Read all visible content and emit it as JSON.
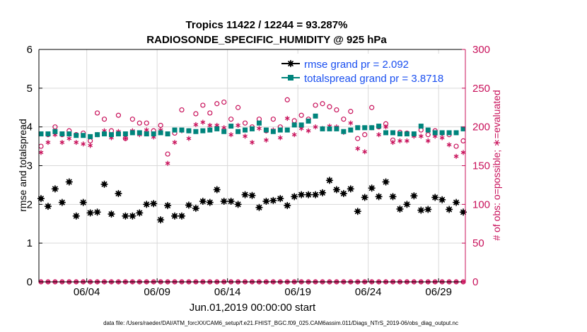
{
  "chart_data": {
    "type": "scatter",
    "title": "Tropics 11422 / 12244 = 93.287%",
    "subtitle": "RADIOSONDE_SPECIFIC_HUMIDITY @ 925 hPa",
    "ylabel_left": "rmse and totalspread",
    "ylabel_right": "# of obs: o=possible; ∗=evaluated",
    "xlabel": "Jun.01,2019 00:00:00 start",
    "footnote": "data file: /Users/raeder/DAI/ATM_forcXX/CAM6_setup/f.e21.FHIST_BGC.f09_025.CAM6assim.011/Diags_NTrS_2019-06/obs_diag_output.nc",
    "ylim_left": [
      0,
      6
    ],
    "ylim_right": [
      0,
      300
    ],
    "xlim": [
      0.6,
      30.9
    ],
    "yticks_left": [
      "0",
      "1",
      "2",
      "3",
      "4",
      "5",
      "6"
    ],
    "yticks_right": [
      "0",
      "50",
      "100",
      "150",
      "200",
      "250",
      "300"
    ],
    "xtick_positions": [
      4,
      9,
      14,
      19,
      24,
      29
    ],
    "xtick_labels": [
      "06/04",
      "06/09",
      "06/14",
      "06/19",
      "06/24",
      "06/29"
    ],
    "legend": [
      {
        "label": "rmse grand pr = 2.092",
        "color": "#000000",
        "marker": "star"
      },
      {
        "label": "totalspread grand pr = 3.8718",
        "color": "#00847c",
        "marker": "square"
      }
    ],
    "x": [
      0.75,
      1.25,
      1.75,
      2.25,
      2.75,
      3.25,
      3.75,
      4.25,
      4.75,
      5.25,
      5.75,
      6.25,
      6.75,
      7.25,
      7.75,
      8.25,
      8.75,
      9.25,
      9.75,
      10.25,
      10.75,
      11.25,
      11.75,
      12.25,
      12.75,
      13.25,
      13.75,
      14.25,
      14.75,
      15.25,
      15.75,
      16.25,
      16.75,
      17.25,
      17.75,
      18.25,
      18.75,
      19.25,
      19.75,
      20.25,
      20.75,
      21.25,
      21.75,
      22.25,
      22.75,
      23.25,
      23.75,
      24.25,
      24.75,
      25.25,
      25.75,
      26.25,
      26.75,
      27.25,
      27.75,
      28.25,
      28.75,
      29.25,
      29.75,
      30.25,
      30.75
    ],
    "series": [
      {
        "name": "rmse",
        "color": "#000000",
        "axis": "left",
        "values": [
          2.15,
          1.95,
          2.4,
          2.05,
          2.58,
          1.7,
          2.05,
          1.78,
          1.8,
          2.52,
          1.75,
          2.28,
          1.7,
          1.7,
          1.78,
          2.0,
          2.02,
          1.6,
          1.97,
          1.7,
          1.7,
          1.98,
          1.9,
          2.08,
          2.05,
          2.38,
          2.08,
          2.08,
          2.0,
          2.25,
          2.23,
          1.92,
          2.08,
          2.1,
          2.15,
          1.97,
          2.2,
          2.25,
          2.25,
          2.25,
          2.3,
          2.62,
          2.38,
          2.28,
          2.4,
          1.82,
          2.18,
          2.42,
          2.2,
          2.58,
          2.2,
          1.88,
          2.0,
          2.22,
          1.85,
          1.87,
          2.18,
          2.12,
          1.87,
          2.05,
          1.8
        ]
      },
      {
        "name": "totalspread",
        "color": "#00847c",
        "axis": "left",
        "values": [
          3.82,
          3.82,
          3.88,
          3.82,
          3.82,
          3.78,
          3.78,
          3.75,
          3.8,
          3.82,
          3.8,
          3.82,
          3.82,
          3.85,
          3.85,
          3.82,
          3.82,
          3.85,
          3.82,
          3.92,
          3.92,
          3.9,
          3.88,
          3.9,
          3.92,
          3.95,
          3.88,
          4.02,
          3.88,
          3.92,
          3.95,
          4.1,
          3.92,
          3.88,
          3.92,
          3.92,
          4.05,
          4.05,
          4.15,
          4.28,
          3.95,
          3.95,
          3.95,
          3.88,
          3.92,
          3.98,
          3.98,
          3.98,
          4.02,
          3.85,
          3.85,
          3.82,
          3.82,
          3.82,
          4.02,
          3.92,
          3.85,
          3.85,
          3.85,
          3.85,
          3.95
        ]
      },
      {
        "name": "possible",
        "color": "#c8105a",
        "axis": "right",
        "values": [
          175,
          190,
          200,
          190,
          195,
          190,
          192,
          182,
          218,
          210,
          195,
          215,
          185,
          210,
          205,
          205,
          195,
          202,
          165,
          192,
          222,
          195,
          217,
          228,
          218,
          230,
          232,
          210,
          225,
          205,
          200,
          210,
          195,
          210,
          200,
          235,
          208,
          215,
          210,
          228,
          230,
          226,
          222,
          210,
          220,
          185,
          190,
          225,
          200,
          204,
          183,
          193,
          192,
          190,
          196,
          190,
          195,
          192,
          190,
          175,
          182
        ]
      },
      {
        "name": "evaluated",
        "color": "#c8105a",
        "axis": "right",
        "values": [
          167,
          180,
          190,
          180,
          185,
          180,
          178,
          176,
          190,
          195,
          186,
          194,
          185,
          195,
          190,
          196,
          187,
          196,
          153,
          180,
          195,
          185,
          203,
          206,
          202,
          202,
          199,
          190,
          202,
          188,
          180,
          198,
          183,
          196,
          186,
          211,
          190,
          198,
          195,
          200,
          198,
          201,
          200,
          193,
          205,
          172,
          168,
          199,
          190,
          200,
          180,
          182,
          182,
          188,
          188,
          182,
          188,
          186,
          177,
          162,
          167
        ]
      },
      {
        "name": "possible_zero",
        "color": "#c8105a",
        "axis": "right",
        "values": [
          0,
          0,
          0,
          0,
          0,
          0,
          0,
          0,
          0,
          0,
          0,
          0,
          0,
          0,
          0,
          0,
          0,
          0,
          0,
          0,
          0,
          0,
          0,
          0,
          0,
          0,
          0,
          0,
          0,
          0,
          0,
          0,
          0,
          0,
          0,
          0,
          0,
          0,
          0,
          0,
          0,
          0,
          0,
          0,
          0,
          0,
          0,
          0,
          0,
          0,
          0,
          0,
          0,
          0,
          0,
          0,
          0,
          0,
          0,
          0,
          0
        ]
      }
    ]
  }
}
